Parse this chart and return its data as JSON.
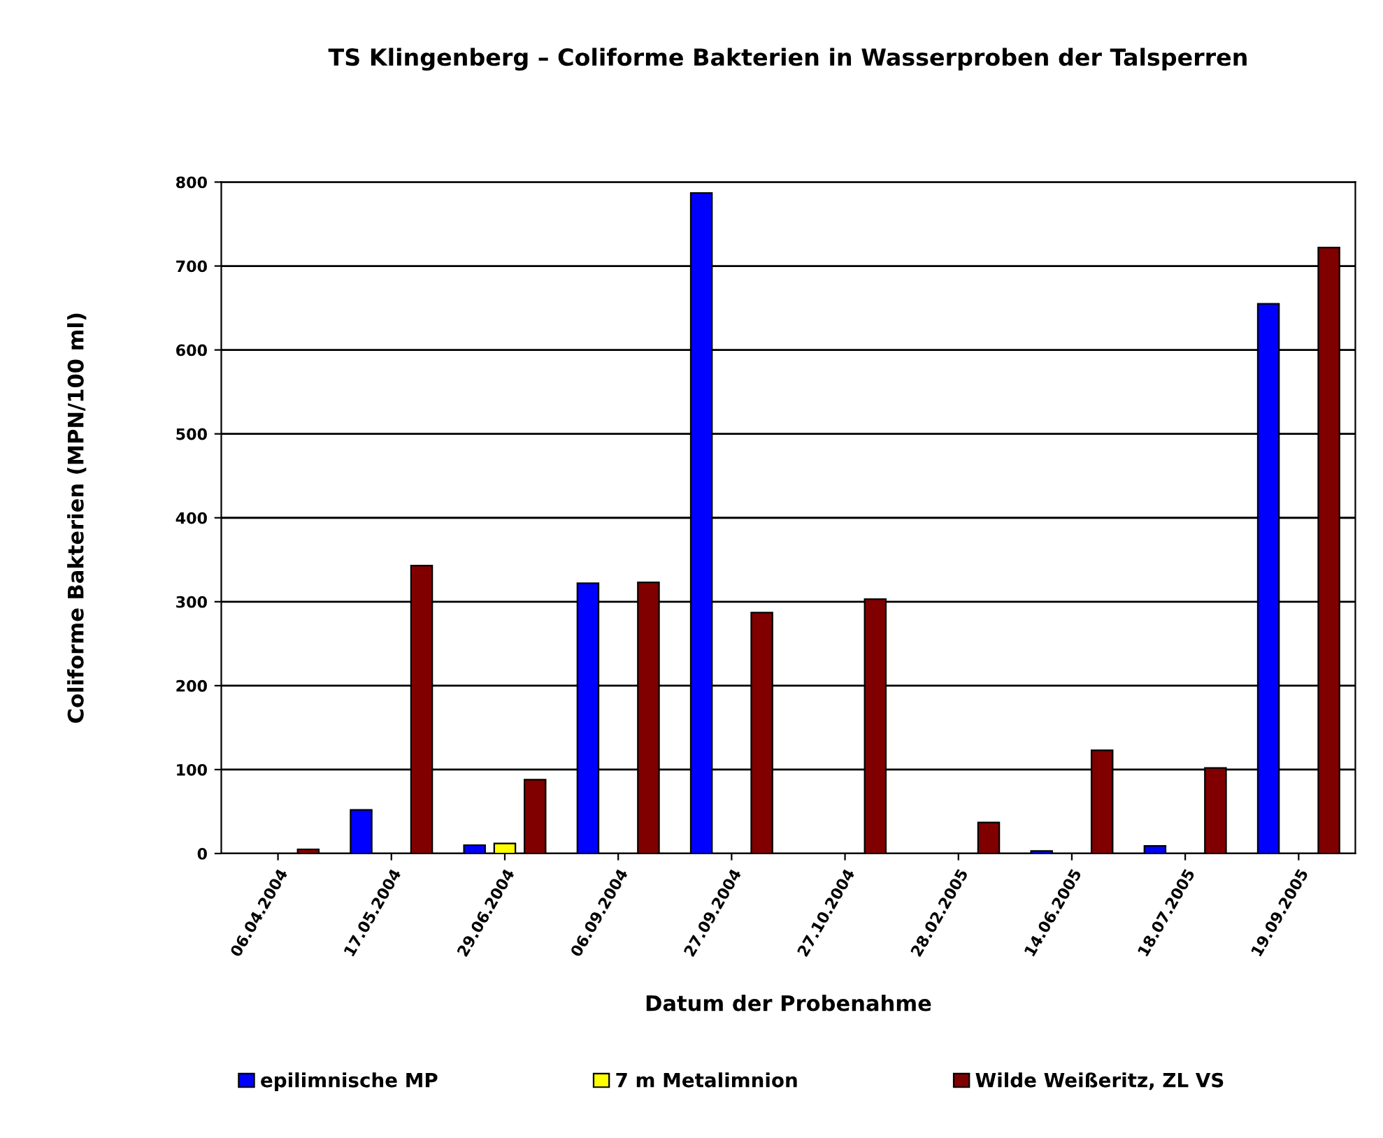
{
  "chart_data": {
    "type": "bar",
    "title": "TS Klingenberg – Coliforme Bakterien in Wasserproben der Talsperren",
    "xlabel": "Datum der Probenahme",
    "ylabel": "Coliforme Bakterien (MPN/100 ml)",
    "categories": [
      "06.04.2004",
      "17.05.2004",
      "29.06.2004",
      "06.09.2004",
      "27.09.2004",
      "27.10.2004",
      "28.02.2005",
      "14.06.2005",
      "18.07.2005",
      "19.09.2005"
    ],
    "series": [
      {
        "name": "epilimnische MP",
        "color": "#0000ff",
        "values": [
          null,
          52,
          10,
          322,
          787,
          null,
          null,
          3,
          9,
          655
        ]
      },
      {
        "name": "7 m Metalimnion",
        "color": "#ffff00",
        "values": [
          null,
          null,
          12,
          null,
          null,
          null,
          null,
          null,
          null,
          null
        ]
      },
      {
        "name": "Wilde Weißeritz, ZL VS",
        "color": "#800000",
        "values": [
          5,
          343,
          88,
          323,
          287,
          303,
          37,
          123,
          102,
          722
        ]
      }
    ],
    "ylim": [
      0,
      800
    ],
    "yticks": [
      0,
      100,
      200,
      300,
      400,
      500,
      600,
      700,
      800
    ],
    "grid": "y",
    "legend": "bottom"
  }
}
